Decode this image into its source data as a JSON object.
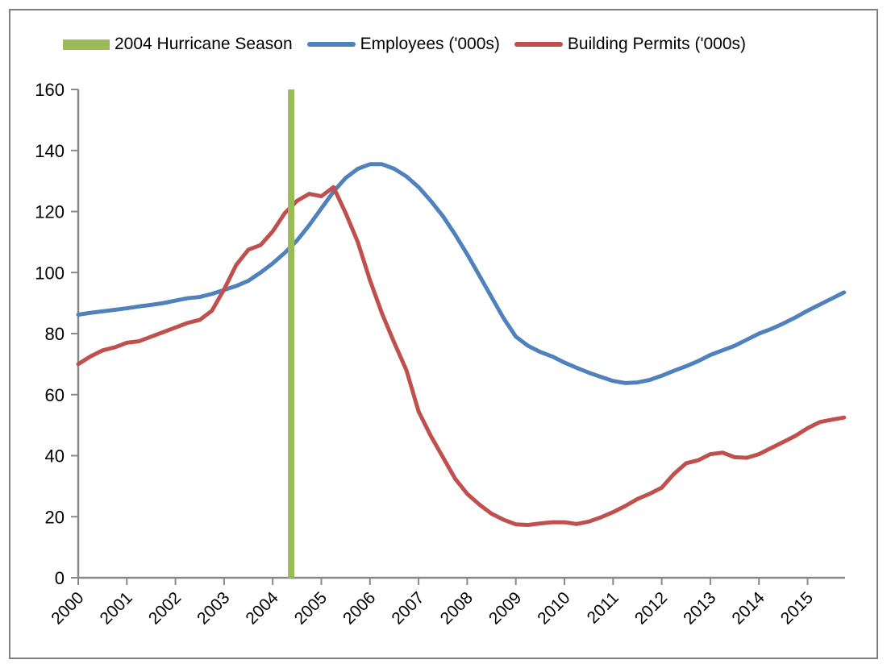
{
  "legend": {
    "items": [
      {
        "label": "2004 Hurricane Season",
        "swatch": "bar",
        "color": "#9BBB59"
      },
      {
        "label": "Employees ('000s)",
        "swatch": "line",
        "color": "#4F81BD"
      },
      {
        "label": "Building Permits ('000s)",
        "swatch": "line",
        "color": "#C0504D"
      }
    ]
  },
  "axis": {
    "line_color": "#898989",
    "text_color": "#000000"
  },
  "chart_data": {
    "type": "line",
    "title": "",
    "xlabel": "",
    "ylabel": "",
    "grid": false,
    "legend_position": "top",
    "ylim": [
      0,
      160
    ],
    "y_ticks": [
      0,
      20,
      40,
      60,
      80,
      100,
      120,
      140,
      160
    ],
    "x_tick_labels": [
      "2000",
      "2001",
      "2002",
      "2003",
      "2004",
      "2005",
      "2006",
      "2007",
      "2008",
      "2009",
      "2010",
      "2011",
      "2012",
      "2013",
      "2014",
      "2015"
    ],
    "x_start_year": 2000,
    "x_step_years": 0.25,
    "series": [
      {
        "name": "Employees ('000s)",
        "color": "#4F81BD",
        "values": [
          86.2,
          86.8,
          87.3,
          87.8,
          88.3,
          88.9,
          89.4,
          90.0,
          90.8,
          91.6,
          92.0,
          93.0,
          94.3,
          95.6,
          97.3,
          100.0,
          103.0,
          106.5,
          110.5,
          115.5,
          121.0,
          126.5,
          131.0,
          134.0,
          135.5,
          135.5,
          134.0,
          131.5,
          128.0,
          123.5,
          118.5,
          112.5,
          106.0,
          99.0,
          92.0,
          85.0,
          79.0,
          76.0,
          74.0,
          72.5,
          70.5,
          68.8,
          67.2,
          65.8,
          64.5,
          63.8,
          64.0,
          64.8,
          66.2,
          67.8,
          69.3,
          71.0,
          73.0,
          74.5,
          76.0,
          78.0,
          80.0,
          81.5,
          83.3,
          85.3,
          87.5,
          89.5,
          91.5,
          93.5
        ]
      },
      {
        "name": "Building Permits ('000s)",
        "color": "#C0504D",
        "values": [
          70.0,
          72.5,
          74.5,
          75.5,
          77.0,
          77.5,
          79.0,
          80.5,
          82.0,
          83.5,
          84.5,
          87.5,
          94.5,
          102.5,
          107.5,
          109.0,
          113.5,
          119.5,
          123.5,
          125.8,
          125.0,
          128.0,
          119.5,
          110.0,
          97.5,
          86.5,
          77.0,
          68.0,
          54.5,
          46.5,
          39.5,
          32.5,
          27.5,
          24.0,
          21.0,
          19.0,
          17.5,
          17.3,
          17.8,
          18.2,
          18.2,
          17.6,
          18.4,
          19.8,
          21.5,
          23.5,
          25.8,
          27.5,
          29.5,
          34.0,
          37.5,
          38.5,
          40.5,
          41.0,
          39.5,
          39.3,
          40.5,
          42.5,
          44.5,
          46.5,
          49.0,
          51.0,
          51.8,
          52.5
        ]
      }
    ],
    "hurricane_marker": {
      "label": "2004 Hurricane Season",
      "color": "#9BBB59",
      "type": "bar",
      "x_year": 2004.38,
      "value": 160
    }
  }
}
